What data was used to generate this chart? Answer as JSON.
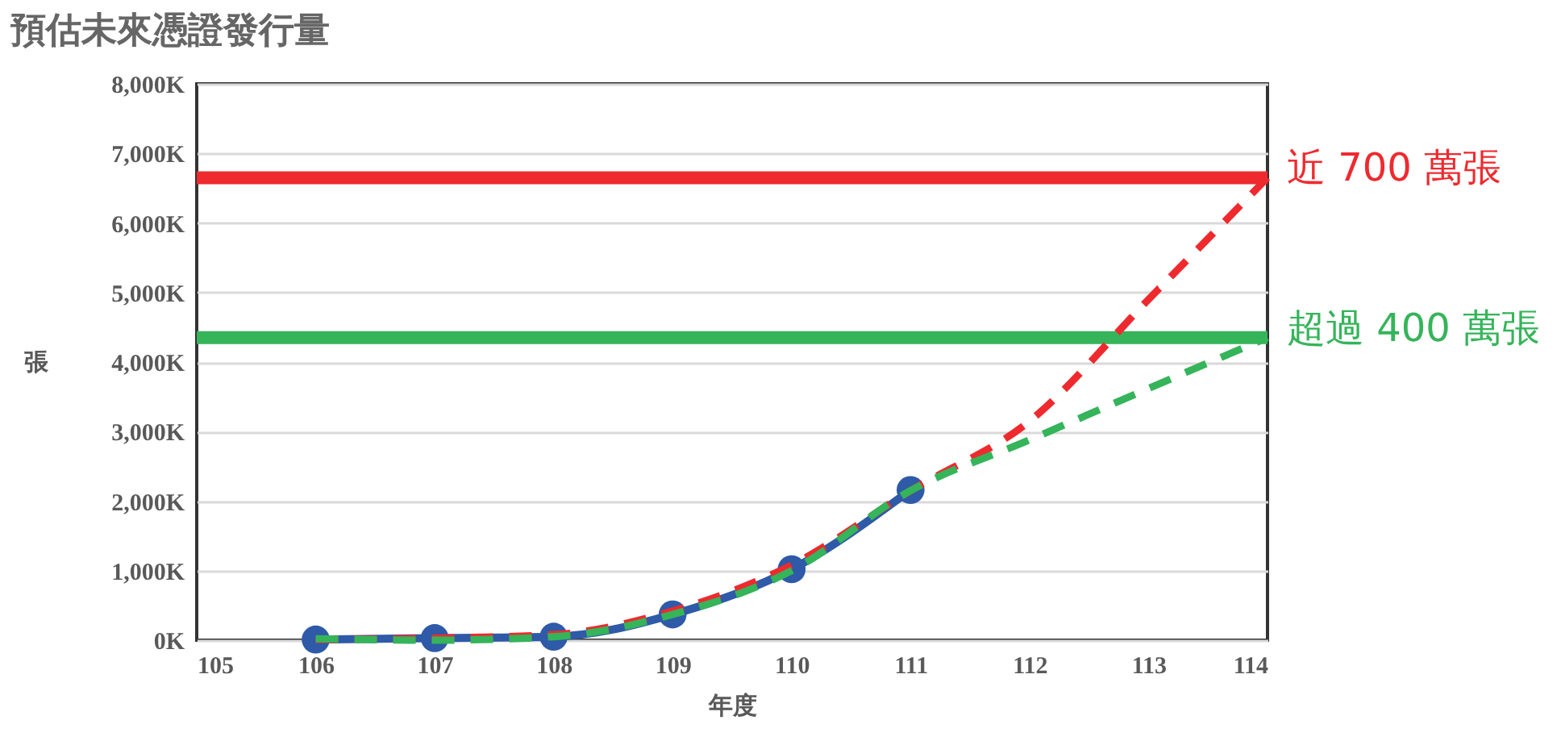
{
  "chart_data": {
    "type": "line",
    "title": "預估未來憑證發行量",
    "xlabel": "年度",
    "ylabel": "張",
    "x": [
      106,
      107,
      108,
      109,
      110,
      111
    ],
    "series": [
      {
        "color": "#2e5aa8",
        "marker": "circle",
        "line_style": "solid",
        "values": [
          10,
          30,
          50,
          370,
          1020,
          2160
        ]
      },
      {
        "color": "#ee2a2f",
        "marker": "none",
        "line_style": "dashed",
        "x": [
          106,
          107,
          108,
          109,
          110,
          111,
          112,
          113,
          114
        ],
        "values": [
          10,
          30,
          80,
          420,
          1080,
          2150,
          3150,
          4900,
          6650
        ]
      },
      {
        "color": "#35b45a",
        "marker": "none",
        "line_style": "dashed",
        "x": [
          106,
          107,
          108,
          109,
          110,
          111,
          112,
          113,
          114
        ],
        "values": [
          20,
          0,
          50,
          370,
          1000,
          2150,
          2880,
          3620,
          4350
        ]
      }
    ],
    "xlim": [
      105,
      114
    ],
    "xticks": [
      105,
      106,
      107,
      108,
      109,
      110,
      111,
      112,
      113,
      114
    ],
    "ylim": [
      0,
      8000
    ],
    "yticks": [
      {
        "value": 0,
        "label": "0K"
      },
      {
        "value": 1000,
        "label": "1,000K"
      },
      {
        "value": 2000,
        "label": "2,000K"
      },
      {
        "value": 3000,
        "label": "3,000K"
      },
      {
        "value": 4000,
        "label": "4,000K"
      },
      {
        "value": 5000,
        "label": "5,000K"
      },
      {
        "value": 6000,
        "label": "6,000K"
      },
      {
        "value": 7000,
        "label": "7,000K"
      },
      {
        "value": 8000,
        "label": "8,000K"
      }
    ],
    "ref_lines": [
      {
        "axis": "y",
        "value": 6650,
        "label": "近 700 萬張",
        "color": "#ee2a2f"
      },
      {
        "axis": "y",
        "value": 4350,
        "label": "超過 400 萬張",
        "color": "#35b45a"
      }
    ],
    "grid": "y"
  }
}
